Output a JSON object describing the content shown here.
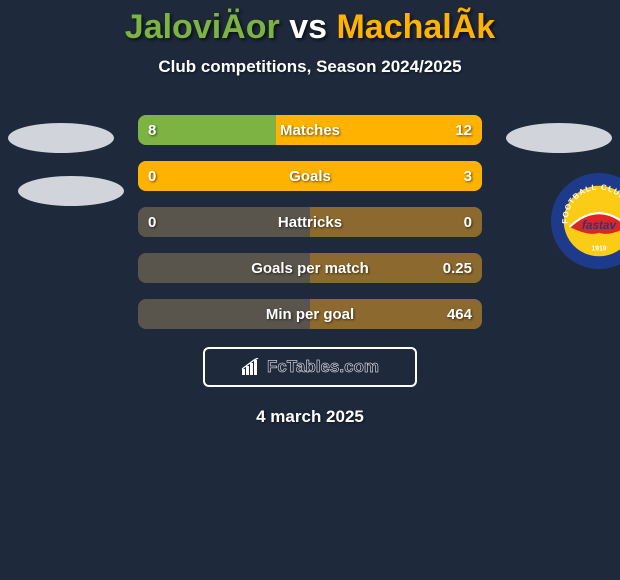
{
  "title": {
    "player1": "JaloviÄor",
    "vs": "vs",
    "player2": "MachalÃ­k",
    "player1_color": "#7cb342",
    "player2_color": "#ffb300"
  },
  "subtitle": "Club competitions, Season 2024/2025",
  "date": "4 march 2025",
  "colors": {
    "background": "#1e293b",
    "primary_left": "#7cb342",
    "primary_right": "#ffb300",
    "text": "#ffffff",
    "bar_track_left": "#59544c",
    "bar_track_right": "#8c6a2f",
    "avatar_shadow": "#d1d5db"
  },
  "club_right": {
    "name": "Fastav Zlín",
    "ring_color": "#1e3a8a",
    "inner_color": "#facc15",
    "accent_red": "#dc2626",
    "text_color": "#ffffff"
  },
  "bars": [
    {
      "label": "Matches",
      "left": "8",
      "right": "12",
      "left_pct": 40,
      "right_pct": 60
    },
    {
      "label": "Goals",
      "left": "0",
      "right": "3",
      "left_pct": 0,
      "right_pct": 100
    },
    {
      "label": "Hattricks",
      "left": "0",
      "right": "0",
      "left_pct": 0,
      "right_pct": 0
    },
    {
      "label": "Goals per match",
      "left": "",
      "right": "0.25",
      "left_pct": 0,
      "right_pct": 0
    },
    {
      "label": "Min per goal",
      "left": "",
      "right": "464",
      "left_pct": 0,
      "right_pct": 0
    }
  ],
  "brand": "FcTables.com"
}
